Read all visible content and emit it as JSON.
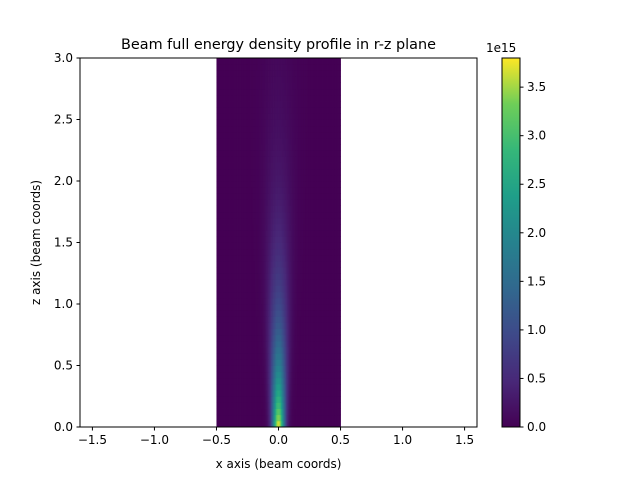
{
  "chart_data": {
    "type": "heatmap",
    "title": "Beam full energy density profile in r-z plane",
    "xlabel": "x axis (beam coords)",
    "ylabel": "z axis (beam coords)",
    "xlim": [
      -1.6,
      1.6
    ],
    "ylim": [
      0.0,
      3.0
    ],
    "x_ticks": [
      -1.5,
      -1.0,
      -0.5,
      0.0,
      0.5,
      1.0,
      1.5
    ],
    "x_tick_labels": [
      "−1.5",
      "−1.0",
      "−0.5",
      "0.0",
      "0.5",
      "1.0",
      "1.5"
    ],
    "y_ticks": [
      0.0,
      0.5,
      1.0,
      1.5,
      2.0,
      2.5,
      3.0
    ],
    "y_tick_labels": [
      "0.0",
      "0.5",
      "1.0",
      "1.5",
      "2.0",
      "2.5",
      "3.0"
    ],
    "data_extent": {
      "x": [
        -0.5,
        0.5
      ],
      "z": [
        0.0,
        3.0
      ]
    },
    "beam": {
      "center_x": 0.0,
      "sigma_x_at_z0": 0.035,
      "sigma_x_at_z3": 0.1,
      "peak_value": 3800000000000000.0,
      "decay_length_z": 1.1
    },
    "colormap": "viridis",
    "colorbar": {
      "range": [
        0.0,
        3800000000000000.0
      ],
      "ticks": [
        0.0,
        0.5,
        1.0,
        1.5,
        2.0,
        2.5,
        3.0,
        3.5
      ],
      "tick_labels": [
        "0.0",
        "0.5",
        "1.0",
        "1.5",
        "2.0",
        "2.5",
        "3.0",
        "3.5"
      ],
      "offset_label": "1e15"
    }
  }
}
